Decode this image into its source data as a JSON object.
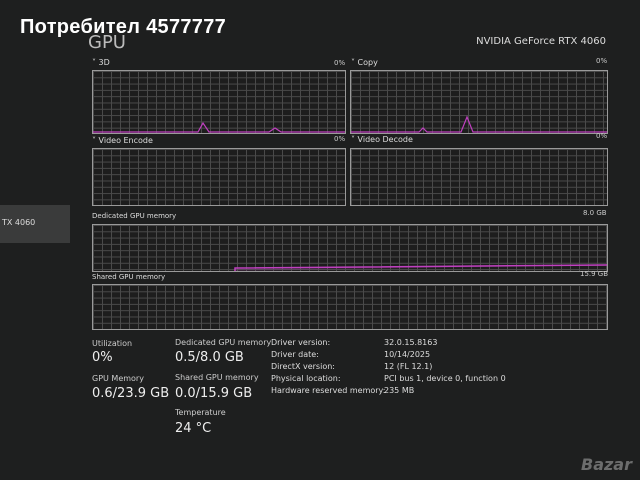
{
  "overlay_title": "Потребител 4577777",
  "sidebar": {
    "selected_label": "TX 4060"
  },
  "header": {
    "title": "GPU",
    "device_name": "NVIDIA GeForce RTX 4060"
  },
  "graphs": {
    "engine_3d": {
      "label": "3D",
      "percent": "0%"
    },
    "copy": {
      "label": "Copy",
      "percent": "0%"
    },
    "video_encode": {
      "label": "Video Encode",
      "percent": "0%"
    },
    "video_decode": {
      "label": "Video Decode",
      "percent": "0%"
    },
    "dedicated_memory": {
      "label": "Dedicated GPU memory",
      "max": "8.0 GB"
    },
    "shared_memory": {
      "label": "Shared GPU memory",
      "max": "15.9 GB"
    }
  },
  "stats": {
    "utilization": {
      "label": "Utilization",
      "value": "0%"
    },
    "gpu_memory": {
      "label": "GPU Memory",
      "value": "0.6/23.9 GB"
    },
    "dedicated": {
      "label": "Dedicated GPU memory",
      "value": "0.5/8.0 GB"
    },
    "shared": {
      "label": "Shared GPU memory",
      "value": "0.0/15.9 GB"
    },
    "temperature": {
      "label": "Temperature",
      "value": "24 °C"
    }
  },
  "info": [
    {
      "key": "Driver version:",
      "value": "32.0.15.8163"
    },
    {
      "key": "Driver date:",
      "value": "10/14/2025"
    },
    {
      "key": "DirectX version:",
      "value": "12 (FL 12.1)"
    },
    {
      "key": "Physical location:",
      "value": "PCI bus 1, device 0, function 0"
    },
    {
      "key": "Hardware reserved memory:",
      "value": "235 MB"
    }
  ],
  "watermark": "Bazar",
  "colors": {
    "graph_line": "#c040c0",
    "background": "#1e1f1f"
  }
}
